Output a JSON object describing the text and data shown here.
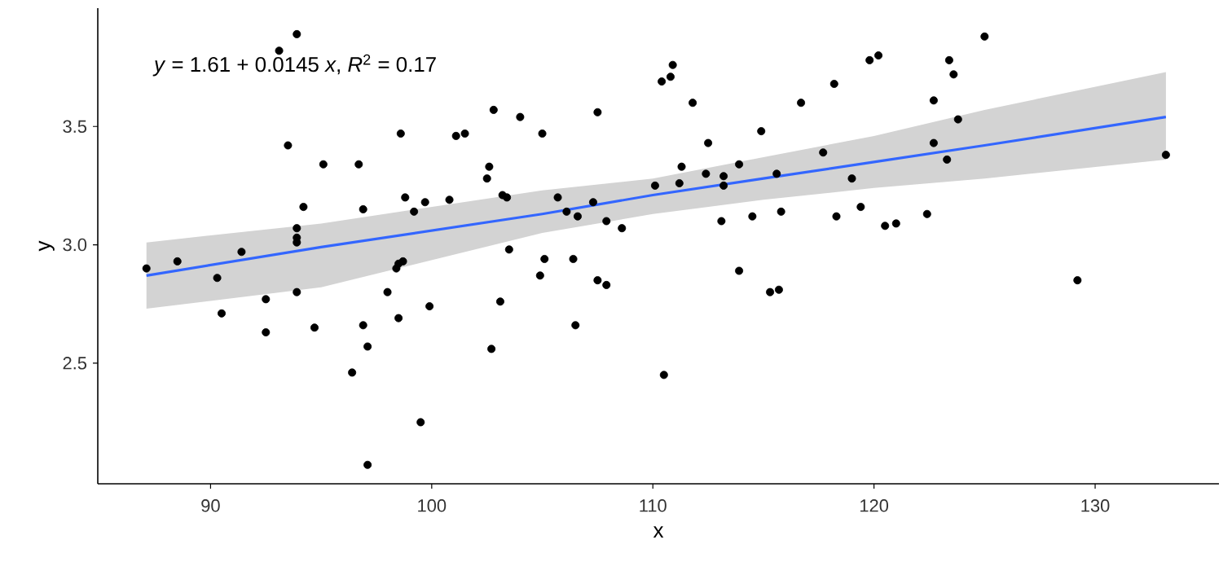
{
  "chart_data": {
    "type": "scatter",
    "xlabel": "x",
    "ylabel": "y",
    "annotations": [
      "*y* = 1.61 + 0.0145 *x*, *R*$^{2}$ = 0.17"
    ],
    "xlim": [
      84.9,
      135.6
    ],
    "ylim": [
      1.99,
      4.0
    ],
    "xticks": [
      90,
      100,
      110,
      120,
      130
    ],
    "yticks": [
      2.5,
      {
        "value": 3,
        "label": "3.0"
      },
      3.5
    ],
    "series": [
      {
        "type": "scatter",
        "color": "#000000",
        "marker": "circle",
        "x": [
          87.1,
          88.5,
          90.3,
          91.4,
          90.5,
          92.5,
          92.5,
          93.9,
          93.5,
          93.1,
          93.9,
          93.9,
          93.9,
          93.9,
          94.2,
          94.7,
          95.1,
          96.7,
          96.9,
          96.9,
          97.1,
          96.4,
          97.1,
          98.0,
          98.4,
          98.5,
          98.7,
          98.5,
          98.6,
          98.8,
          99.2,
          99.7,
          99.9,
          99.5,
          100.8,
          101.1,
          101.5,
          102.5,
          102.6,
          102.7,
          102.8,
          104.0,
          105.0,
          103.2,
          103.4,
          103.5,
          103.1,
          105.1,
          104.9,
          105.7,
          106.1,
          106.4,
          106.5,
          106.6,
          107.3,
          107.5,
          107.5,
          107.9,
          107.9,
          108.6,
          110.1,
          110.4,
          110.8,
          110.9,
          111.2,
          111.3,
          110.5,
          111.8,
          112.4,
          112.5,
          113.1,
          113.2,
          113.2,
          113.9,
          113.9,
          114.5,
          114.9,
          115.3,
          115.7,
          115.6,
          115.8,
          116.7,
          117.7,
          118.2,
          118.3,
          119.0,
          119.4,
          119.8,
          120.2,
          120.5,
          121.0,
          122.4,
          122.7,
          122.7,
          123.3,
          123.4,
          123.6,
          123.8,
          125.0,
          129.2,
          133.2
        ],
        "values": [
          2.9,
          2.93,
          2.86,
          2.97,
          2.71,
          2.77,
          2.63,
          2.8,
          3.42,
          3.82,
          3.89,
          3.07,
          3.01,
          3.03,
          3.16,
          2.65,
          3.34,
          3.34,
          3.15,
          2.66,
          2.57,
          2.46,
          2.07,
          2.8,
          2.9,
          2.92,
          2.93,
          2.69,
          3.47,
          3.2,
          3.14,
          3.18,
          2.74,
          2.25,
          3.19,
          3.46,
          3.47,
          3.28,
          3.33,
          2.56,
          3.57,
          3.54,
          3.47,
          3.21,
          3.2,
          2.98,
          2.76,
          2.94,
          2.87,
          3.2,
          3.14,
          2.94,
          2.66,
          3.12,
          3.18,
          3.56,
          2.85,
          2.83,
          3.1,
          3.07,
          3.25,
          3.69,
          3.71,
          3.76,
          3.26,
          3.33,
          2.45,
          3.6,
          3.3,
          3.43,
          3.1,
          3.29,
          3.25,
          3.34,
          2.89,
          3.12,
          3.48,
          2.8,
          2.81,
          3.3,
          3.14,
          3.6,
          3.39,
          3.68,
          3.12,
          3.28,
          3.16,
          3.78,
          3.8,
          3.08,
          3.09,
          3.13,
          3.61,
          3.43,
          3.36,
          3.78,
          3.72,
          3.53,
          3.88,
          2.85,
          3.38
        ]
      },
      {
        "type": "line",
        "color": "#3366ff",
        "x": [
          87.1,
          95,
          105,
          110,
          115,
          120,
          125,
          133.2
        ],
        "values": [
          2.87,
          2.99,
          3.13,
          3.21,
          3.28,
          3.35,
          3.42,
          3.54
        ],
        "lower": [
          2.73,
          2.82,
          3.05,
          3.13,
          3.19,
          3.24,
          3.28,
          3.36
        ],
        "upper": [
          3.01,
          3.09,
          3.23,
          3.28,
          3.37,
          3.46,
          3.57,
          3.73
        ]
      }
    ]
  }
}
